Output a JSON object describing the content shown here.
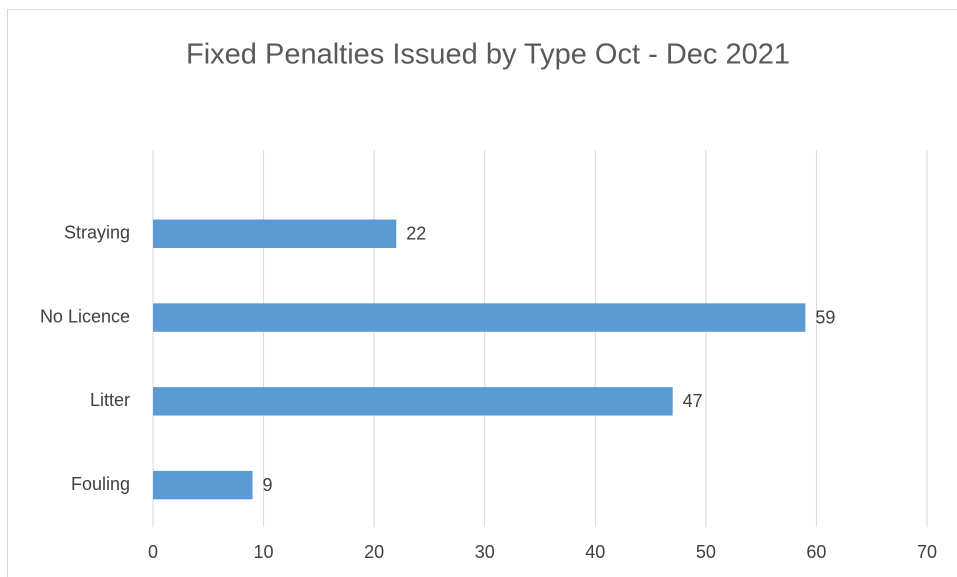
{
  "chart_data": {
    "type": "bar",
    "orientation": "horizontal",
    "title": "Fixed Penalties Issued by Type Oct - Dec 2021",
    "categories": [
      "Fouling",
      "Litter",
      "No Licence",
      "Straying",
      null
    ],
    "values": [
      9,
      47,
      59,
      22,
      null
    ],
    "color": "#5b9bd5",
    "xlim": [
      0,
      70
    ],
    "xticks": [
      0,
      10,
      20,
      30,
      40,
      50,
      60,
      70
    ],
    "grid": true
  }
}
